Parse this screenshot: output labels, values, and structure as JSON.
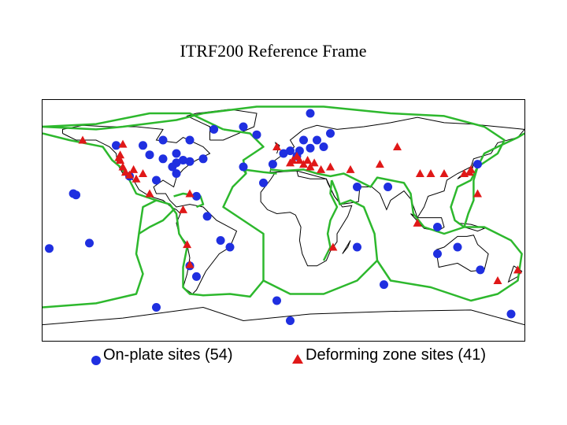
{
  "title": "ITRF200 Reference Frame",
  "legend": {
    "on_plate_label": "On-plate sites (54)",
    "deforming_label": "Deforming zone sites (41)"
  },
  "colors": {
    "on_plate": "#1f2fe0",
    "deforming": "#e01818",
    "plate_boundary": "#2db82d",
    "coastline": "#000000"
  },
  "map": {
    "projection": "equirectangular",
    "extent": {
      "lon": [
        -180,
        180
      ],
      "lat": [
        -90,
        90
      ]
    }
  },
  "on_plate_sites": [
    [
      -155,
      19
    ],
    [
      -157,
      20
    ],
    [
      -105,
      56
    ],
    [
      -125,
      56
    ],
    [
      -100,
      49
    ],
    [
      -90,
      46
    ],
    [
      -75,
      45
    ],
    [
      -80,
      43
    ],
    [
      -70,
      44
    ],
    [
      -60,
      46
    ],
    [
      -80,
      35
    ],
    [
      -83,
      40
    ],
    [
      -115,
      33
    ],
    [
      -65,
      18
    ],
    [
      -95,
      30
    ],
    [
      -57,
      3
    ],
    [
      -47,
      -15
    ],
    [
      -40,
      -20
    ],
    [
      -70,
      -34
    ],
    [
      -65,
      -42
    ],
    [
      -145,
      -17
    ],
    [
      -175,
      -21
    ],
    [
      -20,
      64
    ],
    [
      -52,
      68
    ],
    [
      -30,
      70
    ],
    [
      -80,
      50
    ],
    [
      -90,
      60
    ],
    [
      -70,
      60
    ],
    [
      20,
      80
    ],
    [
      30,
      55
    ],
    [
      12,
      52
    ],
    [
      5,
      52
    ],
    [
      10,
      48
    ],
    [
      0,
      50
    ],
    [
      20,
      54
    ],
    [
      25,
      60
    ],
    [
      35,
      65
    ],
    [
      15,
      60
    ],
    [
      -8,
      42
    ],
    [
      -15,
      28
    ],
    [
      -30,
      40
    ],
    [
      55,
      25
    ],
    [
      78,
      25
    ],
    [
      115,
      -25
    ],
    [
      130,
      -20
    ],
    [
      147,
      -37
    ],
    [
      115,
      -5
    ],
    [
      145,
      42
    ],
    [
      75,
      -48
    ],
    [
      55,
      -20
    ],
    [
      -5,
      -60
    ],
    [
      -95,
      -65
    ],
    [
      170,
      -70
    ],
    [
      5,
      -75
    ]
  ],
  "deforming_sites": [
    [
      -150,
      60
    ],
    [
      -120,
      57
    ],
    [
      -122,
      49
    ],
    [
      -123,
      47
    ],
    [
      -122,
      45
    ],
    [
      -120,
      40
    ],
    [
      -118,
      36
    ],
    [
      -115,
      34
    ],
    [
      -112,
      38
    ],
    [
      -105,
      35
    ],
    [
      -110,
      31
    ],
    [
      -100,
      20
    ],
    [
      -70,
      20
    ],
    [
      -75,
      8
    ],
    [
      -72,
      -18
    ],
    [
      -70,
      -33
    ],
    [
      -5,
      55
    ],
    [
      10,
      48
    ],
    [
      12,
      45
    ],
    [
      15,
      42
    ],
    [
      18,
      45
    ],
    [
      20,
      40
    ],
    [
      23,
      43
    ],
    [
      5,
      43
    ],
    [
      7,
      45
    ],
    [
      28,
      38
    ],
    [
      35,
      40
    ],
    [
      50,
      38
    ],
    [
      72,
      42
    ],
    [
      85,
      55
    ],
    [
      102,
      35
    ],
    [
      110,
      35
    ],
    [
      120,
      35
    ],
    [
      135,
      35
    ],
    [
      140,
      38
    ],
    [
      139,
      36
    ],
    [
      145,
      20
    ],
    [
      100,
      -2
    ],
    [
      37,
      -20
    ],
    [
      175,
      -37
    ],
    [
      160,
      -45
    ]
  ],
  "plate_boundaries": [
    [
      [
        -45,
        68
      ],
      [
        -25,
        65
      ],
      [
        -15,
        55
      ],
      [
        -30,
        45
      ],
      [
        -28,
        35
      ],
      [
        -38,
        25
      ],
      [
        -45,
        10
      ],
      [
        -30,
        0
      ],
      [
        -15,
        -10
      ],
      [
        -15,
        -30
      ],
      [
        -15,
        -45
      ],
      [
        5,
        -55
      ],
      [
        30,
        -55
      ],
      [
        55,
        -45
      ],
      [
        70,
        -30
      ],
      [
        68,
        -10
      ],
      [
        60,
        10
      ],
      [
        50,
        15
      ],
      [
        42,
        12
      ],
      [
        40,
        20
      ],
      [
        36,
        30
      ]
    ],
    [
      [
        -180,
        -65
      ],
      [
        -140,
        -62
      ],
      [
        -110,
        -55
      ],
      [
        -105,
        -40
      ],
      [
        -110,
        -25
      ],
      [
        -108,
        -10
      ],
      [
        -105,
        10
      ],
      [
        -95,
        15
      ],
      [
        -110,
        20
      ],
      [
        -115,
        30
      ],
      [
        -122,
        40
      ],
      [
        -128,
        45
      ],
      [
        -135,
        55
      ],
      [
        -160,
        60
      ],
      [
        -180,
        65
      ]
    ],
    [
      [
        -95,
        15
      ],
      [
        -85,
        12
      ],
      [
        -82,
        8
      ],
      [
        -90,
        0
      ],
      [
        -100,
        -5
      ],
      [
        -108,
        -10
      ]
    ],
    [
      [
        -85,
        12
      ],
      [
        -80,
        5
      ],
      [
        -78,
        -10
      ],
      [
        -72,
        -20
      ],
      [
        -75,
        -35
      ],
      [
        -75,
        -50
      ],
      [
        -70,
        -55
      ],
      [
        -60,
        -56
      ],
      [
        -40,
        -55
      ],
      [
        -25,
        -57
      ],
      [
        -15,
        -45
      ]
    ],
    [
      [
        -82,
        18
      ],
      [
        -75,
        20
      ],
      [
        -62,
        18
      ],
      [
        -60,
        12
      ],
      [
        -65,
        10
      ]
    ],
    [
      [
        -10,
        38
      ],
      [
        0,
        37
      ],
      [
        15,
        38
      ],
      [
        25,
        35
      ],
      [
        35,
        33
      ],
      [
        45,
        35
      ],
      [
        55,
        30
      ],
      [
        65,
        25
      ],
      [
        70,
        32
      ],
      [
        80,
        30
      ],
      [
        90,
        28
      ],
      [
        95,
        20
      ],
      [
        97,
        5
      ],
      [
        105,
        -5
      ],
      [
        120,
        -10
      ],
      [
        135,
        -5
      ],
      [
        150,
        -5
      ],
      [
        160,
        -10
      ],
      [
        170,
        -15
      ],
      [
        178,
        -25
      ],
      [
        175,
        -45
      ],
      [
        160,
        -55
      ],
      [
        140,
        -60
      ],
      [
        110,
        -50
      ],
      [
        80,
        -45
      ],
      [
        70,
        -30
      ]
    ],
    [
      [
        -180,
        70
      ],
      [
        -140,
        68
      ],
      [
        -120,
        70
      ],
      [
        -80,
        75
      ],
      [
        -60,
        80
      ],
      [
        -20,
        85
      ],
      [
        30,
        85
      ],
      [
        80,
        80
      ],
      [
        120,
        78
      ],
      [
        150,
        70
      ],
      [
        165,
        60
      ],
      [
        160,
        50
      ],
      [
        145,
        40
      ],
      [
        140,
        30
      ],
      [
        130,
        25
      ],
      [
        125,
        10
      ],
      [
        128,
        0
      ],
      [
        135,
        -5
      ]
    ],
    [
      [
        145,
        40
      ],
      [
        150,
        50
      ],
      [
        160,
        55
      ],
      [
        175,
        62
      ],
      [
        180,
        65
      ]
    ],
    [
      [
        145,
        40
      ],
      [
        142,
        30
      ],
      [
        142,
        15
      ],
      [
        138,
        5
      ],
      [
        135,
        -5
      ]
    ],
    [
      [
        -45,
        68
      ],
      [
        -70,
        80
      ],
      [
        -100,
        80
      ],
      [
        -140,
        72
      ],
      [
        -180,
        70
      ]
    ],
    [
      [
        36,
        30
      ],
      [
        35,
        20
      ],
      [
        40,
        10
      ],
      [
        35,
        0
      ],
      [
        33,
        -10
      ],
      [
        35,
        -20
      ],
      [
        30,
        -30
      ]
    ],
    [
      [
        -5,
        35
      ],
      [
        -15,
        36
      ],
      [
        -30,
        38
      ],
      [
        -28,
        35
      ]
    ]
  ],
  "coastlines": [
    [
      [
        -165,
        65
      ],
      [
        -155,
        60
      ],
      [
        -140,
        60
      ],
      [
        -130,
        55
      ],
      [
        -125,
        50
      ],
      [
        -124,
        42
      ],
      [
        -120,
        35
      ],
      [
        -112,
        30
      ],
      [
        -108,
        23
      ],
      [
        -100,
        18
      ],
      [
        -90,
        15
      ],
      [
        -84,
        10
      ],
      [
        -80,
        8
      ],
      [
        -77,
        5
      ],
      [
        -80,
        -2
      ],
      [
        -78,
        -10
      ],
      [
        -72,
        -18
      ],
      [
        -70,
        -28
      ],
      [
        -72,
        -40
      ],
      [
        -75,
        -50
      ],
      [
        -68,
        -55
      ],
      [
        -65,
        -52
      ],
      [
        -58,
        -38
      ],
      [
        -48,
        -25
      ],
      [
        -40,
        -20
      ],
      [
        -35,
        -8
      ],
      [
        -50,
        0
      ],
      [
        -60,
        10
      ],
      [
        -70,
        12
      ],
      [
        -80,
        10
      ],
      [
        -85,
        15
      ],
      [
        -88,
        20
      ],
      [
        -95,
        20
      ],
      [
        -97,
        25
      ],
      [
        -90,
        30
      ],
      [
        -82,
        25
      ],
      [
        -80,
        32
      ],
      [
        -75,
        38
      ],
      [
        -70,
        42
      ],
      [
        -65,
        45
      ],
      [
        -55,
        50
      ],
      [
        -60,
        55
      ],
      [
        -75,
        62
      ],
      [
        -80,
        58
      ],
      [
        -95,
        60
      ],
      [
        -90,
        68
      ],
      [
        -110,
        70
      ],
      [
        -130,
        70
      ],
      [
        -150,
        71
      ],
      [
        -165,
        68
      ],
      [
        -165,
        65
      ]
    ],
    [
      [
        -55,
        60
      ],
      [
        -45,
        60
      ],
      [
        -22,
        70
      ],
      [
        -20,
        80
      ],
      [
        -40,
        83
      ],
      [
        -65,
        80
      ],
      [
        -72,
        78
      ],
      [
        -55,
        70
      ],
      [
        -55,
        60
      ]
    ],
    [
      [
        -10,
        36
      ],
      [
        -9,
        43
      ],
      [
        -2,
        48
      ],
      [
        5,
        52
      ],
      [
        8,
        55
      ],
      [
        5,
        60
      ],
      [
        15,
        68
      ],
      [
        25,
        71
      ],
      [
        40,
        68
      ],
      [
        60,
        70
      ],
      [
        80,
        73
      ],
      [
        100,
        77
      ],
      [
        120,
        73
      ],
      [
        140,
        72
      ],
      [
        160,
        70
      ],
      [
        180,
        68
      ],
      [
        175,
        62
      ],
      [
        160,
        58
      ],
      [
        155,
        50
      ],
      [
        142,
        46
      ],
      [
        140,
        40
      ],
      [
        130,
        35
      ],
      [
        122,
        30
      ],
      [
        120,
        22
      ],
      [
        108,
        18
      ],
      [
        105,
        10
      ],
      [
        100,
        2
      ],
      [
        98,
        8
      ],
      [
        95,
        16
      ],
      [
        90,
        22
      ],
      [
        80,
        15
      ],
      [
        77,
        8
      ],
      [
        72,
        20
      ],
      [
        66,
        25
      ],
      [
        57,
        25
      ],
      [
        56,
        14
      ],
      [
        50,
        13
      ],
      [
        43,
        12
      ],
      [
        38,
        18
      ],
      [
        33,
        28
      ],
      [
        32,
        31
      ],
      [
        28,
        31
      ],
      [
        20,
        31
      ],
      [
        11,
        33
      ],
      [
        10,
        37
      ],
      [
        3,
        37
      ],
      [
        -6,
        36
      ],
      [
        -10,
        36
      ]
    ],
    [
      [
        -17,
        21
      ],
      [
        -10,
        30
      ],
      [
        -6,
        36
      ],
      [
        10,
        37
      ],
      [
        32,
        31
      ],
      [
        38,
        18
      ],
      [
        44,
        10
      ],
      [
        51,
        11
      ],
      [
        48,
        3
      ],
      [
        40,
        -10
      ],
      [
        40,
        -16
      ],
      [
        35,
        -23
      ],
      [
        32,
        -30
      ],
      [
        25,
        -34
      ],
      [
        18,
        -34
      ],
      [
        14,
        -25
      ],
      [
        12,
        -15
      ],
      [
        13,
        -5
      ],
      [
        9,
        4
      ],
      [
        5,
        6
      ],
      [
        -5,
        5
      ],
      [
        -12,
        8
      ],
      [
        -17,
        14
      ],
      [
        -17,
        21
      ]
    ],
    [
      [
        114,
        -22
      ],
      [
        120,
        -20
      ],
      [
        130,
        -12
      ],
      [
        137,
        -12
      ],
      [
        142,
        -11
      ],
      [
        145,
        -18
      ],
      [
        153,
        -25
      ],
      [
        150,
        -37
      ],
      [
        140,
        -38
      ],
      [
        130,
        -32
      ],
      [
        116,
        -35
      ],
      [
        114,
        -22
      ]
    ],
    [
      [
        -5,
        50
      ],
      [
        -3,
        56
      ],
      [
        -6,
        58
      ],
      [
        -4,
        53
      ],
      [
        -5,
        50
      ]
    ],
    [
      [
        130,
        31
      ],
      [
        135,
        34
      ],
      [
        141,
        38
      ],
      [
        142,
        43
      ],
      [
        140,
        36
      ],
      [
        132,
        33
      ],
      [
        130,
        31
      ]
    ],
    [
      [
        44,
        -25
      ],
      [
        50,
        -15
      ],
      [
        48,
        -20
      ],
      [
        44,
        -25
      ]
    ],
    [
      [
        -180,
        -78
      ],
      [
        -120,
        -73
      ],
      [
        -60,
        -65
      ],
      [
        -30,
        -75
      ],
      [
        20,
        -70
      ],
      [
        80,
        -68
      ],
      [
        140,
        -67
      ],
      [
        180,
        -78
      ]
    ],
    [
      [
        172,
        -34
      ],
      [
        178,
        -38
      ],
      [
        175,
        -42
      ],
      [
        168,
        -46
      ],
      [
        172,
        -34
      ]
    ],
    [
      [
        95,
        5
      ],
      [
        105,
        -6
      ],
      [
        115,
        -8
      ],
      [
        120,
        -5
      ],
      [
        118,
        2
      ],
      [
        110,
        2
      ],
      [
        100,
        2
      ],
      [
        95,
        5
      ]
    ],
    [
      [
        130,
        -2
      ],
      [
        140,
        -3
      ],
      [
        150,
        -6
      ],
      [
        145,
        -8
      ],
      [
        135,
        -5
      ],
      [
        130,
        -2
      ]
    ]
  ]
}
